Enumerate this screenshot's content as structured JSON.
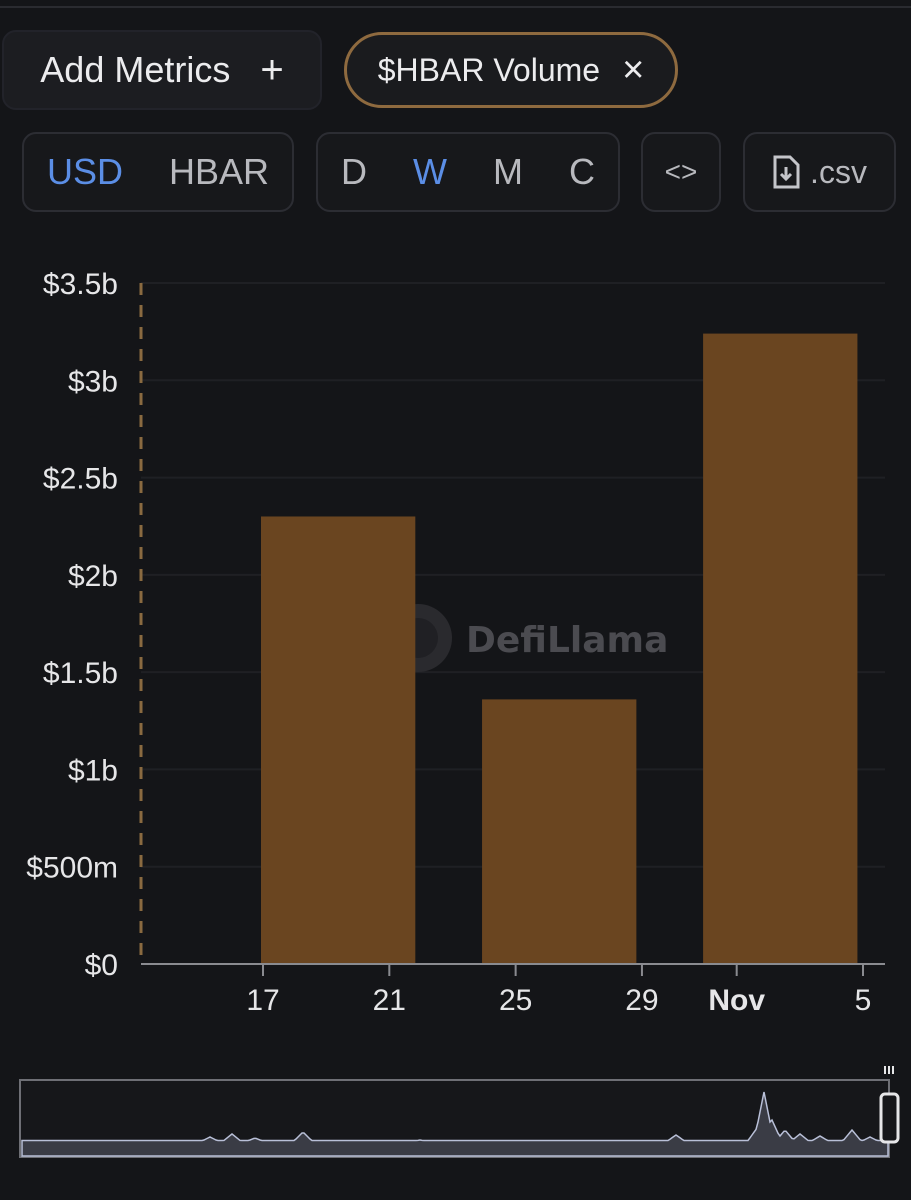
{
  "controls": {
    "add_metrics_label": "Add Metrics",
    "add_icon": "+",
    "metric_chip_label": "$HBAR Volume",
    "remove_icon": "×",
    "currency_options": [
      "USD",
      "HBAR"
    ],
    "currency_selected": "USD",
    "period_options": [
      "D",
      "W",
      "M",
      "C"
    ],
    "period_selected": "W",
    "embed_label": "<>",
    "csv_label": ".csv"
  },
  "watermark": "DefiLlama",
  "colors": {
    "bar": "#6a4520",
    "accent": "#5b8ee6",
    "chip_border": "#8e6a3f",
    "axis_dash": "#8a6a40"
  },
  "chart_data": {
    "type": "bar",
    "y_tick_labels": [
      "$0",
      "$500m",
      "$1b",
      "$1.5b",
      "$2b",
      "$2.5b",
      "$3b",
      "$3.5b"
    ],
    "y_tick_values": [
      0,
      0.5,
      1,
      1.5,
      2,
      2.5,
      3,
      3.5
    ],
    "ylim": [
      0,
      3.5
    ],
    "y_unit": "billion USD",
    "x_tick_labels": [
      "17",
      "21",
      "25",
      "29",
      "Nov",
      "5"
    ],
    "x_ticks": [
      "Oct 17",
      "Oct 21",
      "Oct 25",
      "Oct 29",
      "Nov 1",
      "Nov 5"
    ],
    "xlim": [
      "Oct 13",
      "Nov 5"
    ],
    "bars": [
      {
        "week_start": "Oct 17",
        "week_end": "Oct 21",
        "value": 2.3
      },
      {
        "week_start": "Oct 24",
        "week_end": "Oct 28",
        "value": 1.36
      },
      {
        "week_start": "Oct 31",
        "week_end": "Nov 4",
        "value": 3.24
      }
    ],
    "grid": "horizontal",
    "legend": "none",
    "brush_selection": [
      "end"
    ]
  }
}
